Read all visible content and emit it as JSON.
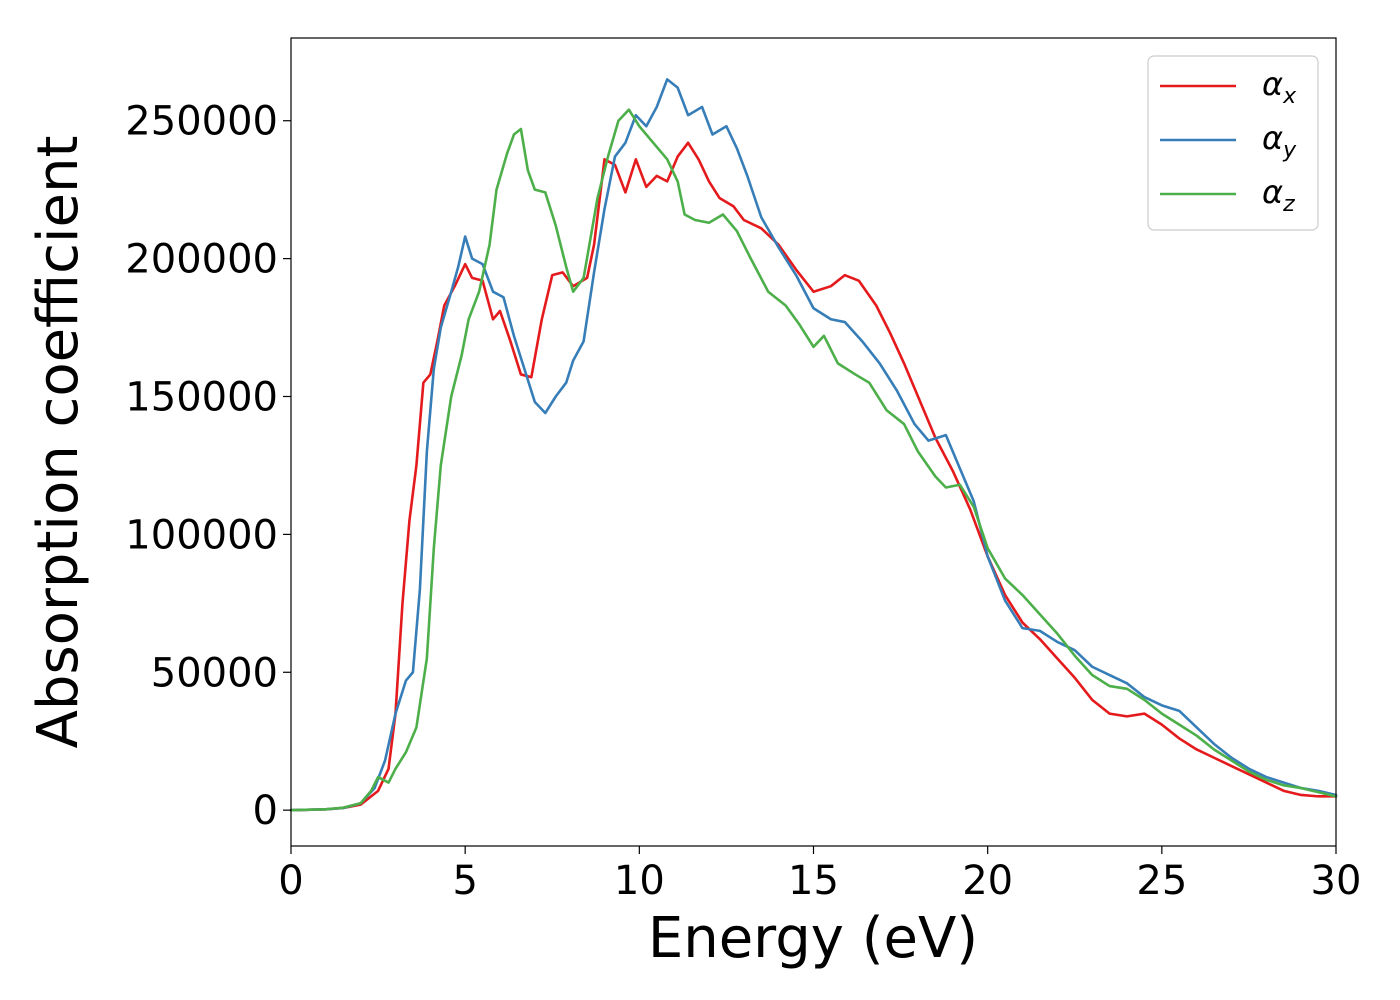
{
  "chart_data": {
    "type": "line",
    "title": "",
    "xlabel": "Energy (eV)",
    "ylabel": "Absorption coefficient",
    "xlim": [
      0,
      30
    ],
    "ylim": [
      -13000,
      280000
    ],
    "xticks": [
      0,
      5,
      10,
      15,
      20,
      25,
      30
    ],
    "xtick_labels": [
      "0",
      "5",
      "10",
      "15",
      "20",
      "25",
      "30"
    ],
    "yticks": [
      0,
      50000,
      100000,
      150000,
      200000,
      250000
    ],
    "ytick_labels": [
      "0",
      "50000",
      "100000",
      "150000",
      "200000",
      "250000"
    ],
    "grid": false,
    "legend_position": "top-right",
    "series": [
      {
        "name": "α_x",
        "symbol": "α",
        "subscript": "x",
        "color": "#e41a1c",
        "points": [
          [
            0,
            0
          ],
          [
            1,
            300
          ],
          [
            1.5,
            800
          ],
          [
            2,
            2000
          ],
          [
            2.5,
            7000
          ],
          [
            2.8,
            15000
          ],
          [
            3.0,
            35000
          ],
          [
            3.2,
            75000
          ],
          [
            3.4,
            105000
          ],
          [
            3.6,
            125000
          ],
          [
            3.8,
            155000
          ],
          [
            4.0,
            158000
          ],
          [
            4.2,
            170000
          ],
          [
            4.4,
            183000
          ],
          [
            4.7,
            190000
          ],
          [
            5.0,
            198000
          ],
          [
            5.2,
            193000
          ],
          [
            5.5,
            192000
          ],
          [
            5.8,
            178000
          ],
          [
            6.0,
            181000
          ],
          [
            6.3,
            170000
          ],
          [
            6.6,
            158000
          ],
          [
            6.9,
            157000
          ],
          [
            7.2,
            178000
          ],
          [
            7.5,
            194000
          ],
          [
            7.8,
            195000
          ],
          [
            8.1,
            190000
          ],
          [
            8.5,
            193000
          ],
          [
            8.7,
            205000
          ],
          [
            9.0,
            236000
          ],
          [
            9.3,
            234000
          ],
          [
            9.6,
            224000
          ],
          [
            9.9,
            236000
          ],
          [
            10.2,
            226000
          ],
          [
            10.5,
            230000
          ],
          [
            10.8,
            228000
          ],
          [
            11.1,
            237000
          ],
          [
            11.4,
            242000
          ],
          [
            11.7,
            236000
          ],
          [
            12.0,
            228000
          ],
          [
            12.3,
            222000
          ],
          [
            12.7,
            219000
          ],
          [
            13.0,
            214000
          ],
          [
            13.5,
            211000
          ],
          [
            14.0,
            205000
          ],
          [
            14.5,
            196000
          ],
          [
            15.0,
            188000
          ],
          [
            15.5,
            190000
          ],
          [
            15.9,
            194000
          ],
          [
            16.3,
            192000
          ],
          [
            16.8,
            183000
          ],
          [
            17.2,
            173000
          ],
          [
            17.6,
            162000
          ],
          [
            18.0,
            150000
          ],
          [
            18.5,
            135000
          ],
          [
            19.0,
            123000
          ],
          [
            19.5,
            109000
          ],
          [
            20.0,
            92000
          ],
          [
            20.5,
            78000
          ],
          [
            21.0,
            68000
          ],
          [
            21.5,
            62000
          ],
          [
            22.0,
            55000
          ],
          [
            22.5,
            48000
          ],
          [
            23.0,
            40000
          ],
          [
            23.5,
            35000
          ],
          [
            24.0,
            34000
          ],
          [
            24.5,
            35000
          ],
          [
            25.0,
            31000
          ],
          [
            25.5,
            26000
          ],
          [
            26.0,
            22000
          ],
          [
            26.5,
            19000
          ],
          [
            27.0,
            16000
          ],
          [
            27.5,
            13000
          ],
          [
            28.0,
            10000
          ],
          [
            28.5,
            7000
          ],
          [
            29.0,
            5500
          ],
          [
            29.5,
            5000
          ],
          [
            30.0,
            5000
          ]
        ]
      },
      {
        "name": "α_y",
        "symbol": "α",
        "subscript": "y",
        "color": "#377eb8",
        "points": [
          [
            0,
            0
          ],
          [
            1,
            300
          ],
          [
            1.5,
            800
          ],
          [
            2,
            2500
          ],
          [
            2.4,
            8000
          ],
          [
            2.7,
            18000
          ],
          [
            3.0,
            35000
          ],
          [
            3.3,
            47000
          ],
          [
            3.5,
            50000
          ],
          [
            3.7,
            80000
          ],
          [
            3.9,
            130000
          ],
          [
            4.1,
            160000
          ],
          [
            4.3,
            175000
          ],
          [
            4.6,
            188000
          ],
          [
            4.8,
            197000
          ],
          [
            5.0,
            208000
          ],
          [
            5.2,
            200000
          ],
          [
            5.5,
            198000
          ],
          [
            5.8,
            188000
          ],
          [
            6.1,
            186000
          ],
          [
            6.4,
            172000
          ],
          [
            6.7,
            160000
          ],
          [
            7.0,
            148000
          ],
          [
            7.3,
            144000
          ],
          [
            7.6,
            150000
          ],
          [
            7.9,
            155000
          ],
          [
            8.1,
            163000
          ],
          [
            8.4,
            170000
          ],
          [
            8.7,
            195000
          ],
          [
            9.0,
            218000
          ],
          [
            9.3,
            237000
          ],
          [
            9.6,
            242000
          ],
          [
            9.9,
            252000
          ],
          [
            10.2,
            248000
          ],
          [
            10.5,
            255000
          ],
          [
            10.8,
            265000
          ],
          [
            11.1,
            262000
          ],
          [
            11.4,
            252000
          ],
          [
            11.8,
            255000
          ],
          [
            12.1,
            245000
          ],
          [
            12.5,
            248000
          ],
          [
            12.8,
            240000
          ],
          [
            13.1,
            230000
          ],
          [
            13.5,
            215000
          ],
          [
            14.0,
            204000
          ],
          [
            14.5,
            194000
          ],
          [
            15.0,
            182000
          ],
          [
            15.5,
            178000
          ],
          [
            15.9,
            177000
          ],
          [
            16.4,
            170000
          ],
          [
            16.9,
            162000
          ],
          [
            17.4,
            152000
          ],
          [
            17.9,
            140000
          ],
          [
            18.3,
            134000
          ],
          [
            18.8,
            136000
          ],
          [
            19.2,
            124000
          ],
          [
            19.6,
            112000
          ],
          [
            20.0,
            92000
          ],
          [
            20.5,
            76000
          ],
          [
            21.0,
            66000
          ],
          [
            21.5,
            65000
          ],
          [
            22.0,
            61000
          ],
          [
            22.5,
            58000
          ],
          [
            23.0,
            52000
          ],
          [
            23.5,
            49000
          ],
          [
            24.0,
            46000
          ],
          [
            24.5,
            41000
          ],
          [
            25.0,
            38000
          ],
          [
            25.5,
            36000
          ],
          [
            26.0,
            30000
          ],
          [
            26.5,
            24000
          ],
          [
            27.0,
            19000
          ],
          [
            27.5,
            15000
          ],
          [
            28.0,
            12000
          ],
          [
            28.5,
            10000
          ],
          [
            29.0,
            8000
          ],
          [
            29.5,
            7000
          ],
          [
            30.0,
            5500
          ]
        ]
      },
      {
        "name": "α_z",
        "symbol": "α",
        "subscript": "z",
        "color": "#4daf4a",
        "points": [
          [
            0,
            0
          ],
          [
            1,
            300
          ],
          [
            1.5,
            900
          ],
          [
            2,
            2500
          ],
          [
            2.3,
            7000
          ],
          [
            2.5,
            12000
          ],
          [
            2.8,
            10000
          ],
          [
            3.0,
            15000
          ],
          [
            3.3,
            21000
          ],
          [
            3.6,
            30000
          ],
          [
            3.9,
            55000
          ],
          [
            4.1,
            95000
          ],
          [
            4.3,
            125000
          ],
          [
            4.6,
            150000
          ],
          [
            4.9,
            165000
          ],
          [
            5.1,
            178000
          ],
          [
            5.4,
            188000
          ],
          [
            5.7,
            205000
          ],
          [
            5.9,
            225000
          ],
          [
            6.2,
            238000
          ],
          [
            6.4,
            245000
          ],
          [
            6.6,
            247000
          ],
          [
            6.8,
            232000
          ],
          [
            7.0,
            225000
          ],
          [
            7.3,
            224000
          ],
          [
            7.6,
            212000
          ],
          [
            7.9,
            197000
          ],
          [
            8.1,
            188000
          ],
          [
            8.4,
            193000
          ],
          [
            8.8,
            222000
          ],
          [
            9.1,
            237000
          ],
          [
            9.4,
            250000
          ],
          [
            9.7,
            254000
          ],
          [
            10.0,
            248000
          ],
          [
            10.4,
            242000
          ],
          [
            10.8,
            236000
          ],
          [
            11.1,
            228000
          ],
          [
            11.3,
            216000
          ],
          [
            11.6,
            214000
          ],
          [
            12.0,
            213000
          ],
          [
            12.4,
            216000
          ],
          [
            12.8,
            210000
          ],
          [
            13.2,
            200000
          ],
          [
            13.7,
            188000
          ],
          [
            14.2,
            183000
          ],
          [
            14.6,
            176000
          ],
          [
            15.0,
            168000
          ],
          [
            15.3,
            172000
          ],
          [
            15.7,
            162000
          ],
          [
            16.2,
            158000
          ],
          [
            16.6,
            155000
          ],
          [
            17.1,
            145000
          ],
          [
            17.6,
            140000
          ],
          [
            18.0,
            130000
          ],
          [
            18.5,
            121000
          ],
          [
            18.8,
            117000
          ],
          [
            19.2,
            118000
          ],
          [
            19.6,
            110000
          ],
          [
            20.0,
            95000
          ],
          [
            20.5,
            84000
          ],
          [
            21.0,
            78000
          ],
          [
            21.5,
            71000
          ],
          [
            22.0,
            64000
          ],
          [
            22.5,
            56000
          ],
          [
            23.0,
            49000
          ],
          [
            23.5,
            45000
          ],
          [
            24.0,
            44000
          ],
          [
            24.5,
            40000
          ],
          [
            25.0,
            35000
          ],
          [
            25.5,
            31000
          ],
          [
            26.0,
            27000
          ],
          [
            26.5,
            22000
          ],
          [
            27.0,
            18000
          ],
          [
            27.5,
            14000
          ],
          [
            28.0,
            11000
          ],
          [
            28.5,
            9000
          ],
          [
            29.0,
            8000
          ],
          [
            29.5,
            6500
          ],
          [
            30.0,
            5000
          ]
        ]
      }
    ]
  }
}
